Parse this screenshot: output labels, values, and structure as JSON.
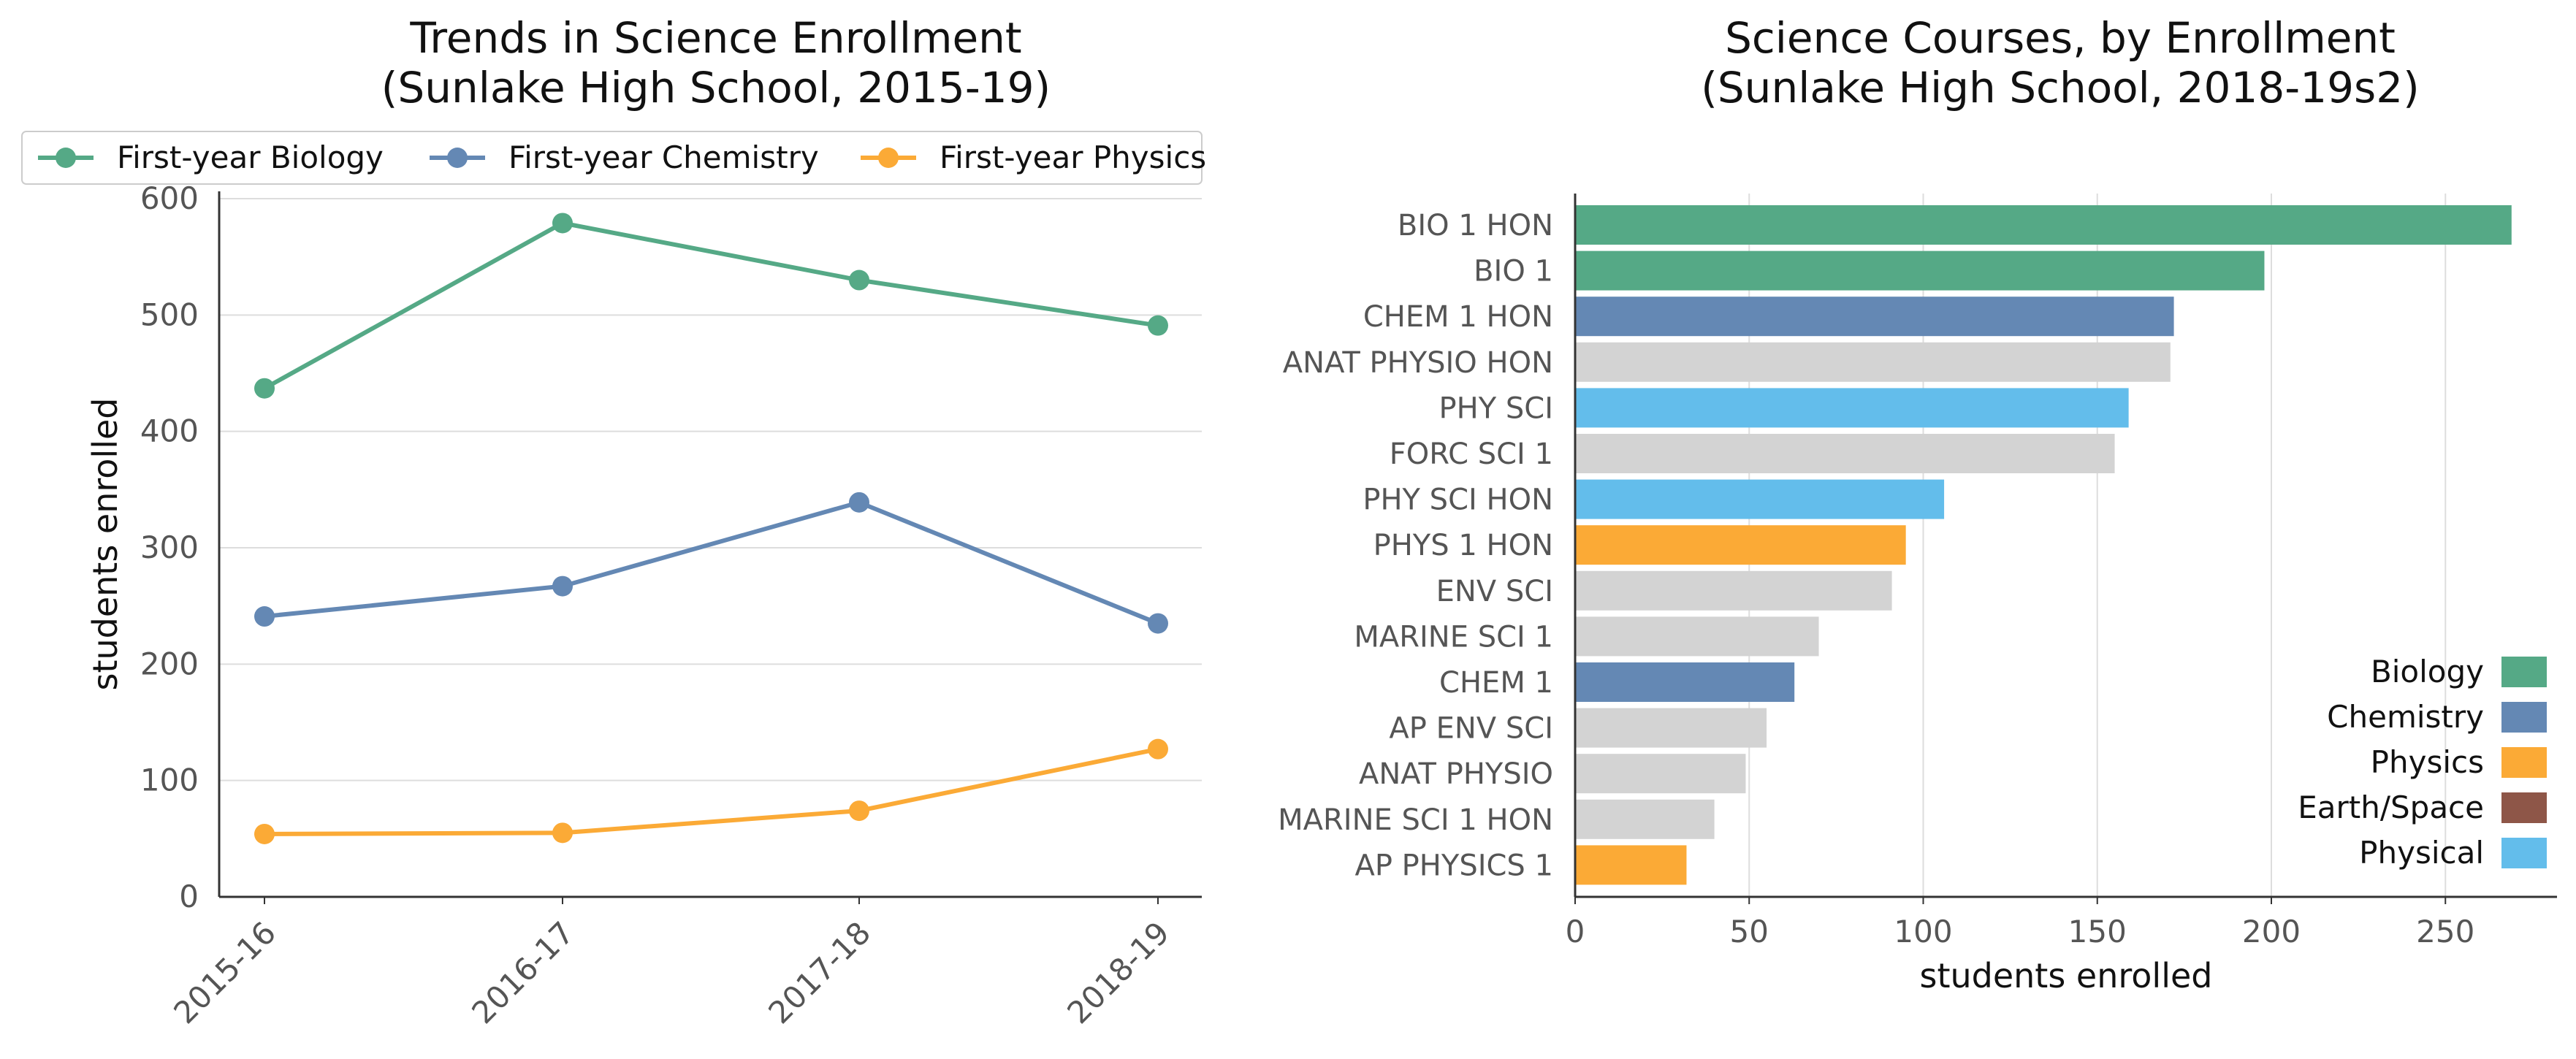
{
  "colors": {
    "biology": "#55a986",
    "chemistry": "#6488b4",
    "physics": "#fbaa36",
    "earth_space": "#8e5648",
    "physical": "#63bdeb",
    "other": "#d3d3d3"
  },
  "chart_data": [
    {
      "type": "line",
      "title_line1": "Trends in Science Enrollment",
      "title_line2": "(Sunlake High School, 2015-19)",
      "xlabel": "",
      "ylabel": "students enrolled",
      "categories": [
        "2015-16",
        "2016-17",
        "2017-18",
        "2018-19"
      ],
      "ylim": [
        0,
        600
      ],
      "yticks": [
        0,
        100,
        200,
        300,
        400,
        500,
        600
      ],
      "grid": "horizontal",
      "legend_position": "top",
      "series": [
        {
          "name": "First-year Biology",
          "color_key": "biology",
          "values": [
            437,
            579,
            530,
            491
          ]
        },
        {
          "name": "First-year Chemistry",
          "color_key": "chemistry",
          "values": [
            241,
            267,
            339,
            235
          ]
        },
        {
          "name": "First-year Physics",
          "color_key": "physics",
          "values": [
            54,
            55,
            74,
            127
          ]
        }
      ]
    },
    {
      "type": "bar",
      "orientation": "horizontal",
      "title_line1": "Science Courses, by Enrollment",
      "title_line2": "(Sunlake High School, 2018-19s2)",
      "xlabel": "students enrolled",
      "ylabel": "",
      "xlim": [
        0,
        282
      ],
      "xticks": [
        0,
        50,
        100,
        150,
        200,
        250
      ],
      "grid": "vertical",
      "legend_position": "lower-right",
      "legend": [
        {
          "label": "Biology",
          "color_key": "biology"
        },
        {
          "label": "Chemistry",
          "color_key": "chemistry"
        },
        {
          "label": "Physics",
          "color_key": "physics"
        },
        {
          "label": "Earth/Space",
          "color_key": "earth_space"
        },
        {
          "label": "Physical",
          "color_key": "physical"
        }
      ],
      "bars": [
        {
          "label": "BIO 1 HON",
          "value": 269,
          "color_key": "biology"
        },
        {
          "label": "BIO 1",
          "value": 198,
          "color_key": "biology"
        },
        {
          "label": "CHEM 1 HON",
          "value": 172,
          "color_key": "chemistry"
        },
        {
          "label": "ANAT PHYSIO HON",
          "value": 171,
          "color_key": "other"
        },
        {
          "label": "PHY SCI",
          "value": 159,
          "color_key": "physical"
        },
        {
          "label": "FORC SCI 1",
          "value": 155,
          "color_key": "other"
        },
        {
          "label": "PHY SCI HON",
          "value": 106,
          "color_key": "physical"
        },
        {
          "label": "PHYS 1 HON",
          "value": 95,
          "color_key": "physics"
        },
        {
          "label": "ENV SCI",
          "value": 91,
          "color_key": "other"
        },
        {
          "label": "MARINE SCI 1",
          "value": 70,
          "color_key": "other"
        },
        {
          "label": "CHEM 1",
          "value": 63,
          "color_key": "chemistry"
        },
        {
          "label": "AP ENV SCI",
          "value": 55,
          "color_key": "other"
        },
        {
          "label": "ANAT PHYSIO",
          "value": 49,
          "color_key": "other"
        },
        {
          "label": "MARINE SCI 1 HON",
          "value": 40,
          "color_key": "other"
        },
        {
          "label": "AP PHYSICS 1",
          "value": 32,
          "color_key": "physics"
        }
      ]
    }
  ]
}
